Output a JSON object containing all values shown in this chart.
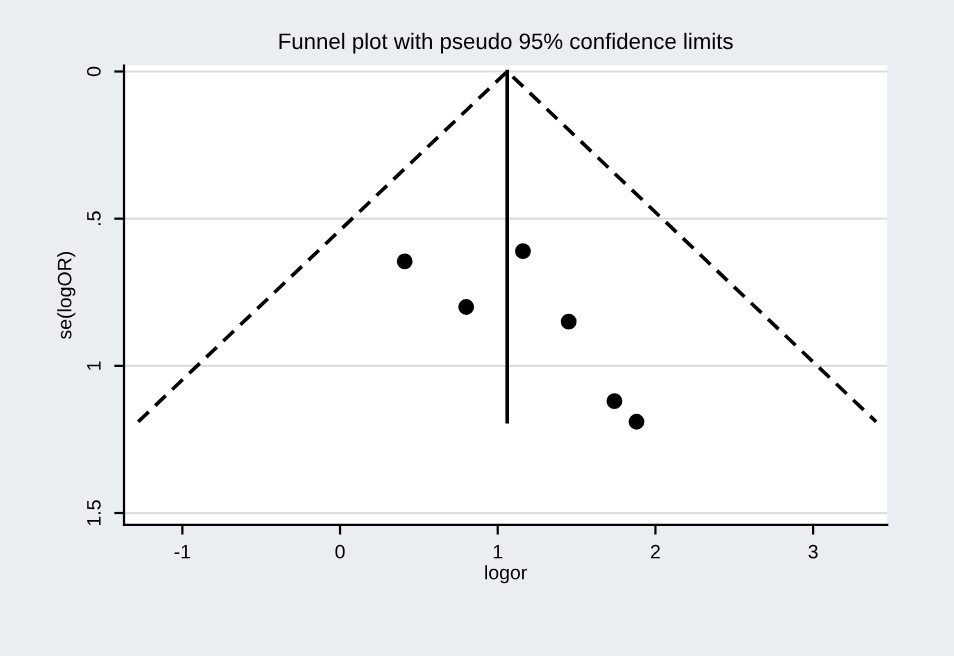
{
  "chart_data": {
    "type": "scatter",
    "title": "Funnel plot with pseudo 95% confidence limits",
    "xlabel": "logor",
    "ylabel": "se(logOR)",
    "xlim": [
      -1.37,
      3.47
    ],
    "ylim": [
      1.54,
      -0.02
    ],
    "xticks": [
      -1,
      0,
      1,
      2,
      3
    ],
    "yticks": [
      0,
      {
        "value": 0.5,
        "label": ".5"
      },
      1,
      1.5
    ],
    "grid": "y",
    "legend": false,
    "series": [
      {
        "type": "line",
        "color": "#000000",
        "line_style": "dashed",
        "marker": "none",
        "x": [
          -1.28,
          1.06,
          3.4
        ],
        "values": [
          1.19,
          0,
          1.19
        ]
      },
      {
        "type": "line",
        "color": "#000000",
        "line_style": "solid",
        "marker": "none",
        "x": [
          1.06,
          1.06
        ],
        "values": [
          0,
          1.19
        ]
      },
      {
        "color": "#000000",
        "marker": "circle",
        "x": [
          0.41,
          0.8,
          1.16,
          1.45,
          1.74,
          1.88
        ],
        "values": [
          0.645,
          0.8,
          0.61,
          0.85,
          1.12,
          1.19
        ]
      }
    ]
  }
}
